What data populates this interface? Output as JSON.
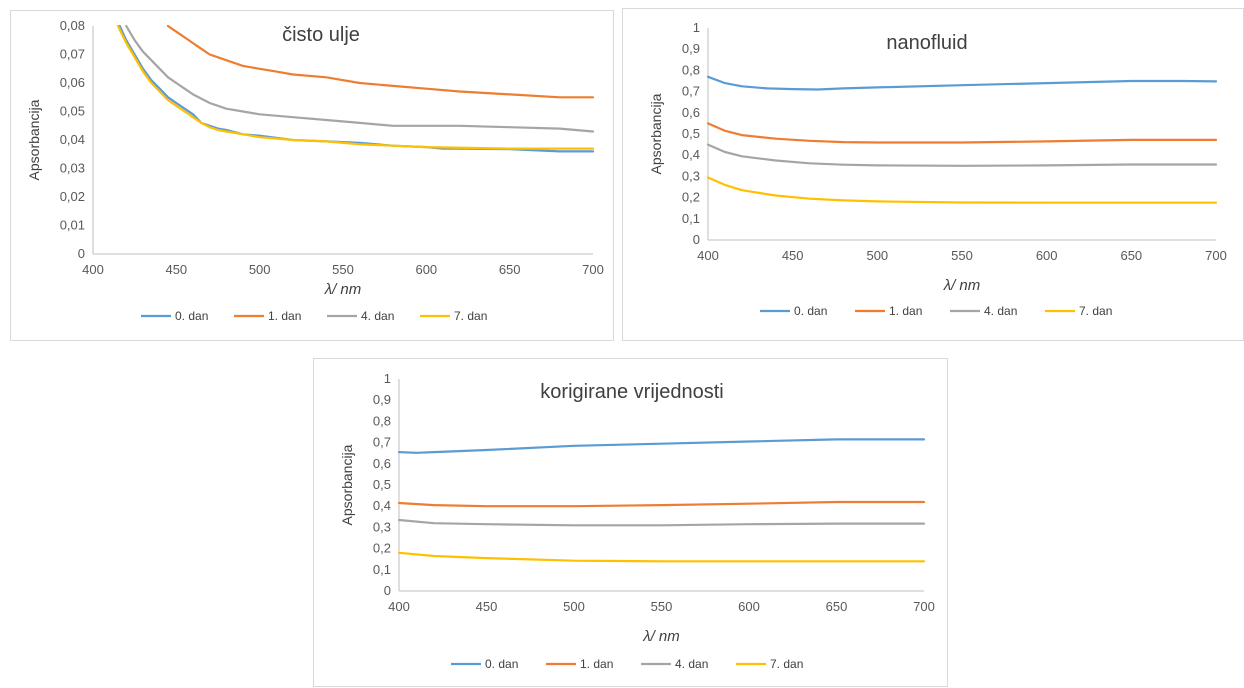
{
  "chart_data": [
    {
      "type": "line",
      "title": "čisto ulje",
      "ylabel": "Apsorbancija",
      "xlabel": "λ/ nm",
      "xlim": [
        400,
        700
      ],
      "ylim": [
        0,
        0.08
      ],
      "xticks": [
        400,
        450,
        500,
        550,
        600,
        650,
        700
      ],
      "xtick_labels": [
        "400",
        "450",
        "500",
        "550",
        "600",
        "650",
        "700"
      ],
      "yticks": [
        0,
        0.01,
        0.02,
        0.03,
        0.04,
        0.05,
        0.06,
        0.07,
        0.08
      ],
      "ytick_labels": [
        "0",
        "0,01",
        "0,02",
        "0,03",
        "0,04",
        "0,05",
        "0,06",
        "0,07",
        "0,08"
      ],
      "legend": "bottom",
      "grid": false,
      "series": [
        {
          "name": "0. dan",
          "color": "#5b9bd5",
          "x": [
            416,
            420,
            425,
            430,
            435,
            440,
            445,
            450,
            455,
            460,
            465,
            470,
            475,
            480,
            490,
            500,
            520,
            540,
            560,
            580,
            600,
            610,
            620,
            650,
            680,
            700
          ],
          "y": [
            0.08,
            0.075,
            0.07,
            0.065,
            0.061,
            0.058,
            0.055,
            0.053,
            0.051,
            0.049,
            0.046,
            0.045,
            0.044,
            0.0435,
            0.042,
            0.0415,
            0.04,
            0.0395,
            0.039,
            0.038,
            0.0375,
            0.037,
            0.037,
            0.0368,
            0.036,
            0.036
          ]
        },
        {
          "name": "1. dan",
          "color": "#ed7d31",
          "x": [
            445,
            450,
            455,
            460,
            465,
            470,
            475,
            480,
            490,
            500,
            510,
            520,
            540,
            560,
            580,
            600,
            620,
            650,
            680,
            700
          ],
          "y": [
            0.08,
            0.078,
            0.076,
            0.074,
            0.072,
            0.07,
            0.069,
            0.068,
            0.066,
            0.065,
            0.064,
            0.063,
            0.062,
            0.06,
            0.059,
            0.058,
            0.057,
            0.056,
            0.055,
            0.055
          ]
        },
        {
          "name": "4. dan",
          "color": "#a5a5a5",
          "x": [
            420,
            425,
            430,
            435,
            440,
            445,
            450,
            455,
            460,
            470,
            480,
            490,
            500,
            520,
            540,
            560,
            580,
            600,
            620,
            650,
            680,
            700
          ],
          "y": [
            0.08,
            0.075,
            0.071,
            0.068,
            0.065,
            0.062,
            0.06,
            0.058,
            0.056,
            0.053,
            0.051,
            0.05,
            0.049,
            0.048,
            0.047,
            0.046,
            0.045,
            0.045,
            0.045,
            0.0445,
            0.044,
            0.043
          ]
        },
        {
          "name": "7. dan",
          "color": "#ffc000",
          "x": [
            415,
            420,
            425,
            430,
            435,
            440,
            445,
            450,
            455,
            460,
            465,
            470,
            475,
            480,
            490,
            500,
            520,
            540,
            560,
            580,
            600,
            650,
            700
          ],
          "y": [
            0.08,
            0.074,
            0.069,
            0.064,
            0.06,
            0.057,
            0.054,
            0.052,
            0.05,
            0.048,
            0.046,
            0.0445,
            0.0435,
            0.043,
            0.042,
            0.041,
            0.04,
            0.0395,
            0.0385,
            0.038,
            0.0375,
            0.037,
            0.037
          ]
        }
      ]
    },
    {
      "type": "line",
      "title": "nanofluid",
      "ylabel": "Apsorbancija",
      "xlabel": "λ/ nm",
      "xlim": [
        400,
        700
      ],
      "ylim": [
        0,
        1
      ],
      "xticks": [
        400,
        450,
        500,
        550,
        600,
        650,
        700
      ],
      "xtick_labels": [
        "400",
        "450",
        "500",
        "550",
        "600",
        "650",
        "700"
      ],
      "yticks": [
        0,
        0.1,
        0.2,
        0.3,
        0.4,
        0.5,
        0.6,
        0.7,
        0.8,
        0.9,
        1
      ],
      "ytick_labels": [
        "0",
        "0,1",
        "0,2",
        "0,3",
        "0,4",
        "0,5",
        "0,6",
        "0,7",
        "0,8",
        "0,9",
        "1"
      ],
      "legend": "bottom",
      "grid": false,
      "series": [
        {
          "name": "0. dan",
          "color": "#5b9bd5",
          "x": [
            400,
            410,
            420,
            435,
            450,
            465,
            480,
            500,
            550,
            600,
            650,
            680,
            700
          ],
          "y": [
            0.77,
            0.74,
            0.725,
            0.715,
            0.712,
            0.71,
            0.715,
            0.72,
            0.73,
            0.74,
            0.75,
            0.75,
            0.748
          ]
        },
        {
          "name": "1. dan",
          "color": "#ed7d31",
          "x": [
            400,
            410,
            420,
            440,
            460,
            480,
            500,
            550,
            600,
            650,
            700
          ],
          "y": [
            0.55,
            0.515,
            0.495,
            0.478,
            0.468,
            0.462,
            0.46,
            0.46,
            0.465,
            0.472,
            0.472
          ]
        },
        {
          "name": "4. dan",
          "color": "#a5a5a5",
          "x": [
            400,
            410,
            420,
            440,
            460,
            480,
            500,
            550,
            600,
            650,
            700
          ],
          "y": [
            0.45,
            0.415,
            0.395,
            0.375,
            0.362,
            0.355,
            0.352,
            0.35,
            0.352,
            0.356,
            0.356
          ]
        },
        {
          "name": "7. dan",
          "color": "#ffc000",
          "x": [
            400,
            410,
            420,
            440,
            460,
            480,
            500,
            550,
            600,
            650,
            700
          ],
          "y": [
            0.295,
            0.26,
            0.235,
            0.21,
            0.195,
            0.187,
            0.182,
            0.177,
            0.176,
            0.176,
            0.176
          ]
        }
      ]
    },
    {
      "type": "line",
      "title": "korigirane vrijednosti",
      "ylabel": "Apsorbancija",
      "xlabel": "λ/ nm",
      "xlim": [
        400,
        700
      ],
      "ylim": [
        0,
        1
      ],
      "xticks": [
        400,
        450,
        500,
        550,
        600,
        650,
        700
      ],
      "xtick_labels": [
        "400",
        "450",
        "500",
        "550",
        "600",
        "650",
        "700"
      ],
      "yticks": [
        0,
        0.1,
        0.2,
        0.3,
        0.4,
        0.5,
        0.6,
        0.7,
        0.8,
        0.9,
        1
      ],
      "ytick_labels": [
        "0",
        "0,1",
        "0,2",
        "0,3",
        "0,4",
        "0,5",
        "0,6",
        "0,7",
        "0,8",
        "0,9",
        "1"
      ],
      "legend": "bottom",
      "grid": false,
      "series": [
        {
          "name": "0. dan",
          "color": "#5b9bd5",
          "x": [
            400,
            410,
            420,
            450,
            500,
            550,
            600,
            650,
            700
          ],
          "y": [
            0.655,
            0.652,
            0.655,
            0.665,
            0.685,
            0.695,
            0.705,
            0.715,
            0.715
          ]
        },
        {
          "name": "1. dan",
          "color": "#ed7d31",
          "x": [
            400,
            420,
            450,
            500,
            550,
            600,
            650,
            700
          ],
          "y": [
            0.415,
            0.405,
            0.4,
            0.4,
            0.405,
            0.412,
            0.42,
            0.42
          ]
        },
        {
          "name": "4. dan",
          "color": "#a5a5a5",
          "x": [
            400,
            420,
            450,
            500,
            550,
            600,
            650,
            700
          ],
          "y": [
            0.335,
            0.32,
            0.315,
            0.31,
            0.31,
            0.315,
            0.318,
            0.318
          ]
        },
        {
          "name": "7. dan",
          "color": "#ffc000",
          "x": [
            400,
            420,
            450,
            500,
            550,
            600,
            650,
            700
          ],
          "y": [
            0.18,
            0.165,
            0.155,
            0.143,
            0.14,
            0.14,
            0.14,
            0.14
          ]
        }
      ]
    }
  ]
}
